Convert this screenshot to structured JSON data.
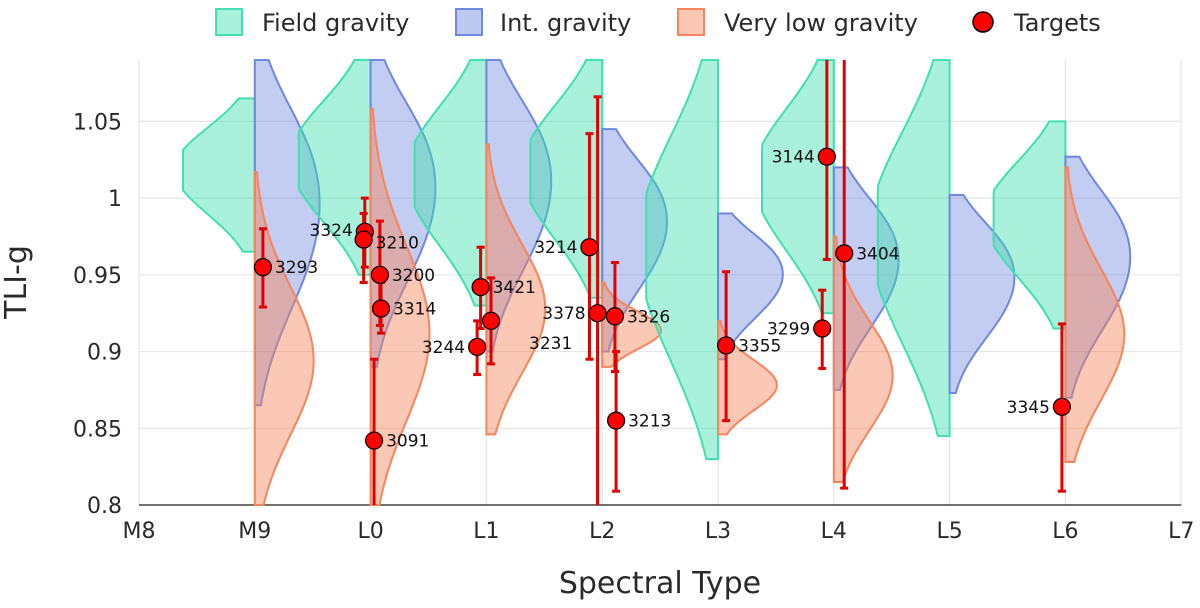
{
  "chart_data": {
    "type": "violin",
    "xlabel": "Spectral Type",
    "ylabel": "TLI-g",
    "categories": [
      "M8",
      "M9",
      "L0",
      "L1",
      "L2",
      "L3",
      "L4",
      "L5",
      "L6",
      "L7"
    ],
    "ylim": [
      0.8,
      1.09
    ],
    "yticks": [
      0.8,
      0.85,
      0.9,
      0.95,
      1.0,
      1.05
    ],
    "ytick_labels": [
      "0.8",
      "0.85",
      "0.9",
      "0.95",
      "1",
      "1.05"
    ],
    "grid": true,
    "legend": {
      "placement": "top",
      "entries": [
        "Field gravity",
        "Int. gravity",
        "Very low gravity",
        "Targets"
      ]
    },
    "colors": {
      "field": "#40e0b0",
      "int": "#6f88e0",
      "vlg": "#f7845a",
      "target": "#ff0000",
      "errorbar": "#e00000"
    },
    "violins": [
      {
        "spt": "M9",
        "field": [
          0.965,
          1.065
        ],
        "int": [
          0.865,
          1.09
        ],
        "vlg": [
          0.8,
          1.017
        ]
      },
      {
        "spt": "L0",
        "field": [
          0.95,
          1.09
        ],
        "int": [
          0.89,
          1.09
        ],
        "vlg": [
          0.8,
          1.058
        ]
      },
      {
        "spt": "L1",
        "field": [
          0.93,
          1.09
        ],
        "int": [
          0.9,
          1.09
        ],
        "vlg": [
          0.846,
          1.035
        ]
      },
      {
        "spt": "L2",
        "field": [
          0.935,
          1.09
        ],
        "int": [
          0.9,
          1.045
        ],
        "vlg": [
          0.89,
          0.945
        ]
      },
      {
        "spt": "L3",
        "field": [
          0.83,
          1.09
        ],
        "int": [
          0.895,
          0.99
        ],
        "vlg": [
          0.846,
          0.92
        ]
      },
      {
        "spt": "L4",
        "field": [
          0.925,
          1.09
        ],
        "int": [
          0.875,
          1.02
        ],
        "vlg": [
          0.815,
          0.975
        ]
      },
      {
        "spt": "L5",
        "field": [
          0.845,
          1.09
        ],
        "int": [
          0.873,
          1.002
        ],
        "vlg": null
      },
      {
        "spt": "L6",
        "field": [
          0.915,
          1.05
        ],
        "int": [
          0.87,
          1.027
        ],
        "vlg": [
          0.828,
          1.02
        ]
      }
    ],
    "targets": [
      {
        "id": "3293",
        "spt_pos": 1.07,
        "y": 0.955,
        "yerr": [
          0.929,
          0.98
        ]
      },
      {
        "id": "3324",
        "spt_pos": 1.95,
        "y": 0.978,
        "yerr": [
          0.955,
          1.0
        ]
      },
      {
        "id": "3210",
        "spt_pos": 1.94,
        "y": 0.973,
        "yerr": [
          0.945,
          0.99
        ]
      },
      {
        "id": "3200",
        "spt_pos": 2.08,
        "y": 0.95,
        "yerr": [
          0.917,
          0.985
        ]
      },
      {
        "id": "3314",
        "spt_pos": 2.09,
        "y": 0.928,
        "yerr": [
          0.912,
          0.945
        ]
      },
      {
        "id": "3091",
        "spt_pos": 2.03,
        "y": 0.842,
        "yerr": [
          0.8,
          0.895
        ]
      },
      {
        "id": "3421",
        "spt_pos": 2.95,
        "y": 0.942,
        "yerr": [
          0.915,
          0.968
        ]
      },
      {
        "id": "3231",
        "spt_pos": 3.04,
        "y": 0.92,
        "yerr": [
          0.892,
          0.948
        ]
      },
      {
        "id": "3244",
        "spt_pos": 2.92,
        "y": 0.903,
        "yerr": [
          0.885,
          0.92
        ]
      },
      {
        "id": "3214",
        "spt_pos": 3.89,
        "y": 0.968,
        "yerr": [
          0.895,
          1.042
        ]
      },
      {
        "id": "3378",
        "spt_pos": 3.96,
        "y": 0.925,
        "yerr": [
          0.8,
          1.066
        ]
      },
      {
        "id": "3326",
        "spt_pos": 4.11,
        "y": 0.923,
        "yerr": [
          0.887,
          0.958
        ]
      },
      {
        "id": "3213",
        "spt_pos": 4.12,
        "y": 0.855,
        "yerr": [
          0.809,
          0.9
        ]
      },
      {
        "id": "3355",
        "spt_pos": 5.07,
        "y": 0.904,
        "yerr": [
          0.855,
          0.952
        ]
      },
      {
        "id": "3144",
        "spt_pos": 5.94,
        "y": 1.027,
        "yerr": [
          0.96,
          1.09
        ]
      },
      {
        "id": "3404",
        "spt_pos": 6.09,
        "y": 0.964,
        "yerr": [
          0.811,
          1.09
        ]
      },
      {
        "id": "3299",
        "spt_pos": 5.9,
        "y": 0.915,
        "yerr": [
          0.889,
          0.94
        ]
      },
      {
        "id": "3345",
        "spt_pos": 7.97,
        "y": 0.864,
        "yerr": [
          0.809,
          0.918
        ]
      }
    ]
  }
}
